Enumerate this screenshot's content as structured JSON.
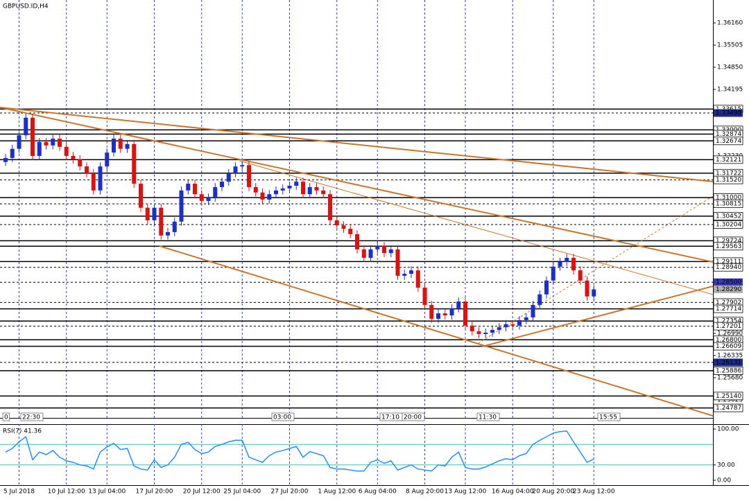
{
  "chart_data": [
    {
      "type": "candlestick",
      "title": "GBPUSD.ID,H4",
      "categories": [
        null,
        null,
        "5 Jul 2018",
        null,
        null,
        null,
        null,
        null,
        null,
        "10 Jul 12:00",
        null,
        null,
        null,
        null,
        null,
        "13 Jul 04:00",
        null,
        null,
        null,
        null,
        null,
        null,
        "17 Jul 20:00",
        null,
        null,
        null,
        null,
        null,
        null,
        "20 Jul 12:00",
        null,
        null,
        null,
        null,
        null,
        "25 Jul 04:00",
        null,
        null,
        null,
        null,
        null,
        null,
        "27 Jul 20:00",
        null,
        null,
        null,
        null,
        null,
        null,
        "1 Aug 12:00",
        null,
        null,
        null,
        null,
        null,
        "6 Aug 04:00",
        null,
        null,
        null,
        null,
        null,
        null,
        "8 Aug 20:00",
        null,
        null,
        null,
        null,
        null,
        "13 Aug 12:00",
        null,
        null,
        null,
        null,
        null,
        null,
        "16 Aug 04:00",
        null,
        null,
        null,
        null,
        null,
        "20 Aug 20:00",
        null,
        null,
        null,
        null,
        null,
        "23 Aug 12:00"
      ],
      "open": [
        1.3205,
        1.3217,
        1.3244,
        1.3284,
        1.3336,
        1.3223,
        1.3264,
        1.3254,
        1.3274,
        1.325,
        1.3223,
        1.3213,
        1.3192,
        1.3172,
        1.3121,
        1.3192,
        1.3233,
        1.3274,
        1.3244,
        1.3258,
        1.3141,
        1.307,
        1.3033,
        1.307,
        1.2988,
        1.2998,
        1.3029,
        1.3121,
        1.3141,
        1.311,
        1.309,
        1.31,
        1.3131,
        1.3147,
        1.3172,
        1.3192,
        1.3196,
        1.3131,
        1.3115,
        1.3094,
        1.311,
        1.3121,
        1.3127,
        1.3135,
        1.3147,
        1.311,
        1.3131,
        1.3121,
        1.311,
        1.3033,
        1.3018,
        1.3008,
        1.2992,
        1.2947,
        1.2922,
        1.2947,
        1.2957,
        1.2936,
        1.2947,
        1.2869,
        1.2875,
        1.2885,
        1.2834,
        1.2783,
        1.2742,
        1.2758,
        1.2752,
        1.2773,
        1.2793,
        1.2722,
        1.2705,
        1.2697,
        1.2701,
        1.2709,
        1.2717,
        1.2726,
        1.2722,
        1.2738,
        1.2746,
        1.2783,
        1.2814,
        1.2855,
        1.2896,
        1.291,
        1.2922,
        1.2885,
        1.2855,
        1.2808
      ],
      "high": [
        1.3229,
        1.3256,
        1.3296,
        1.3348,
        1.3348,
        1.3276,
        1.3276,
        1.3286,
        1.3286,
        1.3262,
        1.3235,
        1.3225,
        1.3204,
        1.3184,
        1.3204,
        1.3245,
        1.3286,
        1.3286,
        1.327,
        1.327,
        1.3153,
        1.3082,
        1.3082,
        1.3082,
        1.301,
        1.3041,
        1.3133,
        1.3153,
        1.3153,
        1.3122,
        1.3112,
        1.3143,
        1.3159,
        1.3184,
        1.3204,
        1.3208,
        1.3208,
        1.3143,
        1.3127,
        1.3122,
        1.3133,
        1.3139,
        1.3147,
        1.3159,
        1.3159,
        1.3143,
        1.3143,
        1.3133,
        1.3122,
        1.3045,
        1.303,
        1.302,
        1.3004,
        1.2959,
        1.2959,
        1.2969,
        1.2969,
        1.2959,
        1.2959,
        1.2887,
        1.2897,
        1.2897,
        1.2846,
        1.2795,
        1.277,
        1.277,
        1.2785,
        1.2805,
        1.2805,
        1.2734,
        1.2717,
        1.2713,
        1.2721,
        1.2729,
        1.2738,
        1.2738,
        1.275,
        1.2758,
        1.2795,
        1.2826,
        1.2867,
        1.2908,
        1.2922,
        1.2934,
        1.2934,
        1.2897,
        1.2867,
        1.2841
      ],
      "low": [
        1.3193,
        1.3205,
        1.3232,
        1.3272,
        1.3211,
        1.3211,
        1.3242,
        1.3242,
        1.3238,
        1.3211,
        1.3201,
        1.318,
        1.316,
        1.3109,
        1.3109,
        1.318,
        1.3221,
        1.3232,
        1.3232,
        1.3129,
        1.3058,
        1.3021,
        1.3021,
        1.2976,
        1.2976,
        1.2986,
        1.3017,
        1.3109,
        1.3098,
        1.3078,
        1.3078,
        1.3088,
        1.3119,
        1.3135,
        1.316,
        1.318,
        1.3119,
        1.3103,
        1.3082,
        1.3082,
        1.3098,
        1.3109,
        1.3115,
        1.3123,
        1.3098,
        1.3098,
        1.3109,
        1.3098,
        1.3021,
        1.3006,
        1.2996,
        1.298,
        1.2935,
        1.291,
        1.291,
        1.2935,
        1.2924,
        1.2924,
        1.2857,
        1.2857,
        1.2863,
        1.2822,
        1.2771,
        1.273,
        1.273,
        1.274,
        1.274,
        1.2761,
        1.271,
        1.2693,
        1.2685,
        1.2685,
        1.2689,
        1.2697,
        1.2705,
        1.271,
        1.271,
        1.2726,
        1.2734,
        1.2771,
        1.2802,
        1.2843,
        1.2884,
        1.2898,
        1.2873,
        1.2843,
        1.2796,
        1.2796
      ],
      "close": [
        1.3217,
        1.3244,
        1.3284,
        1.3336,
        1.3223,
        1.3264,
        1.3254,
        1.3274,
        1.325,
        1.3223,
        1.3213,
        1.3192,
        1.3172,
        1.3121,
        1.3192,
        1.3233,
        1.3274,
        1.3244,
        1.3258,
        1.3141,
        1.307,
        1.3033,
        1.307,
        1.2988,
        1.2998,
        1.3029,
        1.3121,
        1.3141,
        1.311,
        1.309,
        1.31,
        1.3131,
        1.3147,
        1.3172,
        1.3192,
        1.3196,
        1.3131,
        1.3115,
        1.3094,
        1.311,
        1.3121,
        1.3127,
        1.3135,
        1.3147,
        1.311,
        1.3131,
        1.3121,
        1.311,
        1.3033,
        1.3018,
        1.3008,
        1.2992,
        1.2947,
        1.2922,
        1.2947,
        1.2957,
        1.2936,
        1.2947,
        1.2869,
        1.2875,
        1.2885,
        1.2834,
        1.2783,
        1.2742,
        1.2758,
        1.2752,
        1.2773,
        1.2793,
        1.2722,
        1.2705,
        1.2697,
        1.2701,
        1.2709,
        1.2717,
        1.2726,
        1.2722,
        1.2738,
        1.2746,
        1.2783,
        1.2814,
        1.2855,
        1.2896,
        1.291,
        1.2922,
        1.2885,
        1.2855,
        1.2808,
        1.2829
      ],
      "up_color": "#1a2fd0",
      "down_color": "#e01010",
      "ylim": [
        1.24492,
        1.36836
      ],
      "yticks": [
        {
          "value": 1.3616,
          "label": "1.36160"
        },
        {
          "value": 1.35505,
          "label": "1.35505"
        },
        {
          "value": 1.3485,
          "label": "1.34850"
        },
        {
          "value": 1.34195,
          "label": "1.34195"
        },
        {
          "value": 1.3223,
          "label": "1.32230"
        },
        {
          "value": 1.2699,
          "label": "1.26990"
        },
        {
          "value": 1.26335,
          "label": "1.26335"
        },
        {
          "value": 1.2568,
          "label": "1.25680"
        },
        {
          "value": 1.25025,
          "label": "1.25025"
        }
      ],
      "levels": [
        {
          "value": 1.33615,
          "label": "1.33615",
          "style": "solid"
        },
        {
          "value": 1.33498,
          "label": "1.33498",
          "style": "dashed",
          "box": "#1c2a8c"
        },
        {
          "value": 1.33,
          "label": "1.33000",
          "style": "solid"
        },
        {
          "value": 1.32874,
          "label": "1.32874",
          "style": "solid"
        },
        {
          "value": 1.32674,
          "label": "1.32674",
          "style": "solid"
        },
        {
          "value": 1.32121,
          "label": "1.32121",
          "style": "solid"
        },
        {
          "value": 1.31722,
          "label": "1.31722",
          "style": "solid"
        },
        {
          "value": 1.3152,
          "label": "1.31520",
          "style": "dashed"
        },
        {
          "value": 1.31,
          "label": "1.31000",
          "style": "solid"
        },
        {
          "value": 1.30815,
          "label": "1.30815",
          "style": "dashed"
        },
        {
          "value": 1.30452,
          "label": "1.30452",
          "style": "solid"
        },
        {
          "value": 1.30204,
          "label": "1.30204",
          "style": "dashed"
        },
        {
          "value": 1.29724,
          "label": "1.29724",
          "style": "solid"
        },
        {
          "value": 1.29563,
          "label": "1.29563",
          "style": "solid"
        },
        {
          "value": 1.29111,
          "label": "1.29111",
          "style": "solid"
        },
        {
          "value": 1.2894,
          "label": "1.28940",
          "style": "dashed"
        },
        {
          "value": 1.285,
          "label": "1.28500",
          "style": "dashed",
          "box": "#3a3ab0"
        },
        {
          "value": 1.2829,
          "label": "1.28290",
          "style": "none",
          "box": "#b0b0b0"
        },
        {
          "value": 1.27902,
          "label": "1.27902",
          "style": "dashed"
        },
        {
          "value": 1.27714,
          "label": "1.27714",
          "style": "solid"
        },
        {
          "value": 1.27354,
          "label": "1.27354",
          "style": "solid"
        },
        {
          "value": 1.27201,
          "label": "1.27201",
          "style": "dashed"
        },
        {
          "value": 1.268,
          "label": "1.26800",
          "style": "solid"
        },
        {
          "value": 1.26609,
          "label": "1.26609",
          "style": "solid"
        },
        {
          "value": 1.26131,
          "label": "1.26131",
          "style": "dashed",
          "box": "#1c2a8c"
        },
        {
          "value": 1.25886,
          "label": "1.25886",
          "style": "solid"
        },
        {
          "value": 1.2514,
          "label": "1.25140",
          "style": "solid"
        },
        {
          "value": 1.24787,
          "label": "1.24787",
          "style": "solid"
        }
      ],
      "time_labels": [
        "0",
        "22:30",
        "03:00",
        "17:10",
        "20:00",
        "11:30",
        "15:55"
      ],
      "grid": true
    },
    {
      "type": "line",
      "title": "RSI(7) 41.36",
      "color": "#1e90ff",
      "values": [
        55,
        62,
        75,
        85,
        40,
        55,
        50,
        58,
        45,
        38,
        35,
        30,
        28,
        22,
        55,
        65,
        72,
        60,
        62,
        28,
        22,
        20,
        40,
        25,
        30,
        45,
        70,
        74,
        60,
        52,
        55,
        66,
        70,
        75,
        78,
        78,
        45,
        40,
        35,
        48,
        55,
        58,
        62,
        66,
        45,
        56,
        52,
        48,
        25,
        22,
        22,
        20,
        18,
        18,
        35,
        40,
        33,
        38,
        20,
        25,
        30,
        22,
        20,
        18,
        30,
        28,
        45,
        55,
        25,
        22,
        22,
        26,
        32,
        38,
        42,
        40,
        48,
        52,
        70,
        78,
        85,
        92,
        95,
        96,
        75,
        55,
        35,
        41.36
      ],
      "ylim": [
        -9.5,
        109.5
      ],
      "yticks": [
        {
          "value": 100,
          "label": "100.00"
        },
        {
          "value": 30,
          "label": "30.00"
        },
        {
          "value": 0,
          "label": "0.00"
        }
      ],
      "levels": [
        70,
        30
      ]
    }
  ]
}
